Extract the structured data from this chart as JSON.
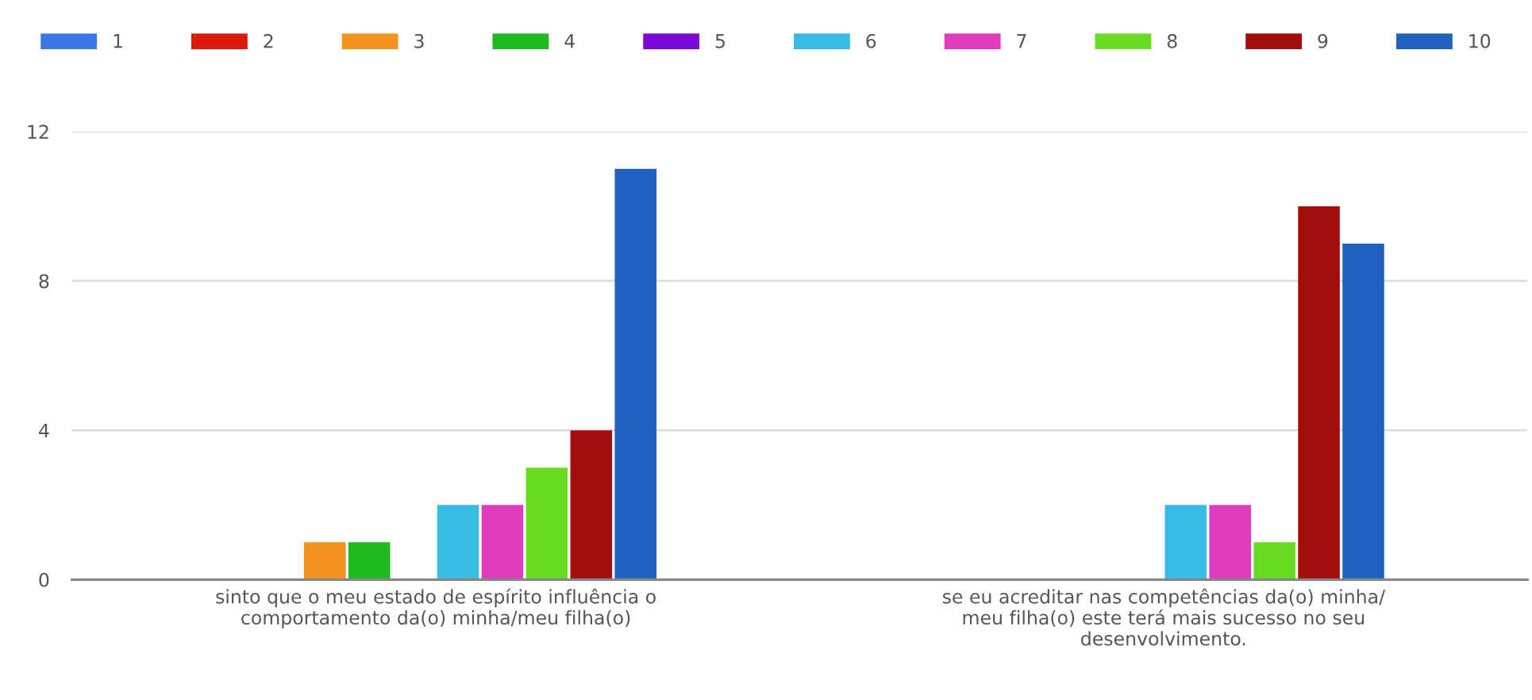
{
  "chart_data": {
    "type": "bar",
    "categories": [
      "sinto que o meu estado de espírito influência o comportamento da(o) minha/meu filha(o)",
      "se eu acreditar nas competências da(o) minha/ meu filha(o) este terá mais sucesso no seu desenvolvimento."
    ],
    "series": [
      {
        "name": "1",
        "color": "#3a78e8",
        "values": [
          0,
          0
        ]
      },
      {
        "name": "2",
        "color": "#db1a0c",
        "values": [
          0,
          0
        ]
      },
      {
        "name": "3",
        "color": "#f4931f",
        "values": [
          1,
          0
        ]
      },
      {
        "name": "4",
        "color": "#1fba1f",
        "values": [
          1,
          0
        ]
      },
      {
        "name": "5",
        "color": "#7b0ad9",
        "values": [
          0,
          0
        ]
      },
      {
        "name": "6",
        "color": "#38bbe4",
        "values": [
          2,
          2
        ]
      },
      {
        "name": "7",
        "color": "#e13cbd",
        "values": [
          2,
          2
        ]
      },
      {
        "name": "8",
        "color": "#67dc22",
        "values": [
          3,
          1
        ]
      },
      {
        "name": "9",
        "color": "#a30d0d",
        "values": [
          4,
          10
        ]
      },
      {
        "name": "10",
        "color": "#2060bf",
        "values": [
          11,
          9
        ]
      }
    ],
    "ylim": [
      0,
      12
    ],
    "yticks": [
      0,
      4,
      8,
      12
    ],
    "grid": "y",
    "legend": "top"
  }
}
